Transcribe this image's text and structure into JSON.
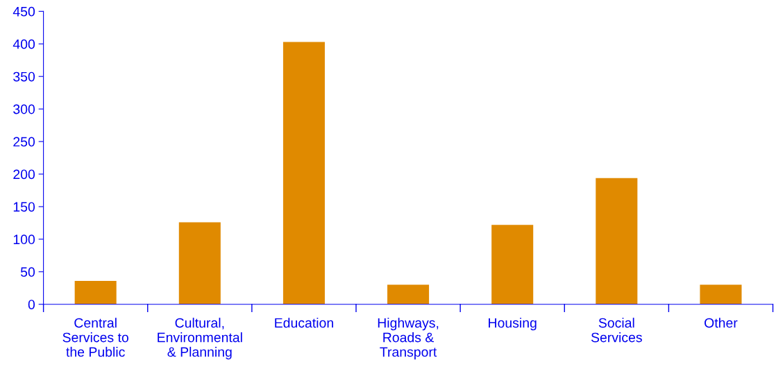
{
  "chart_data": {
    "type": "bar",
    "categories": [
      "Central\nServices to\nthe Public",
      "Cultural,\nEnvironmental\n& Planning",
      "Education",
      "Highways,\nRoads &\nTransport",
      "Housing",
      "Social\nServices",
      "Other"
    ],
    "values": [
      36,
      126,
      403,
      30,
      122,
      194,
      30
    ],
    "color": "#e08a00",
    "ylim": [
      0,
      450
    ],
    "yticks": [
      0,
      50,
      100,
      150,
      200,
      250,
      300,
      350,
      400,
      450
    ],
    "grid": false,
    "legend": false
  }
}
